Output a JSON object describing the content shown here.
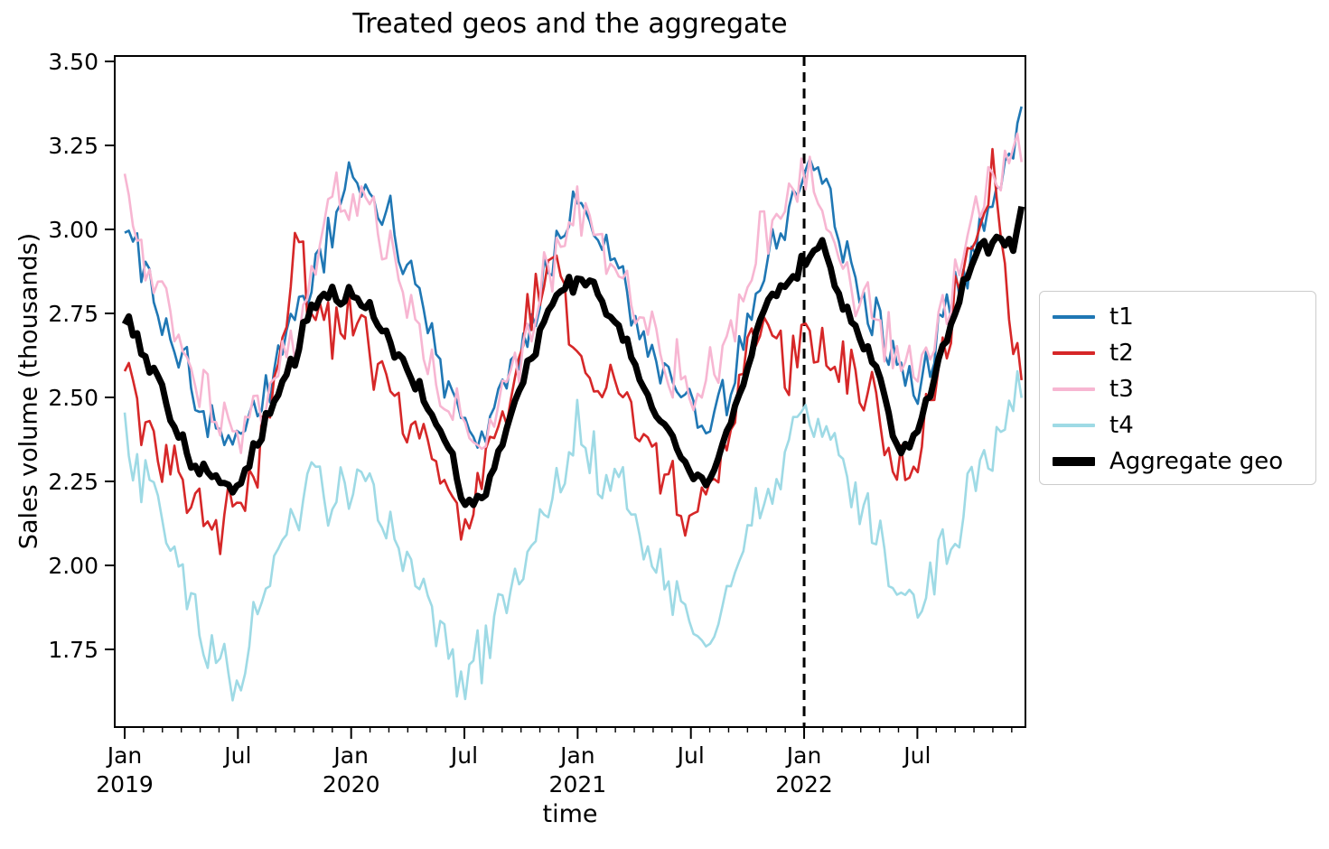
{
  "title": "Treated geos and the aggregate",
  "xlabel": "time",
  "ylabel": "Sales volume (thousands)",
  "axes": {
    "y_tick_labels": [
      "3.50",
      "3.25",
      "3.00",
      "2.75",
      "2.50",
      "2.25",
      "2.00",
      "1.75"
    ],
    "y_tick_values": [
      3.5,
      3.25,
      3.0,
      2.75,
      2.5,
      2.25,
      2.0,
      1.75
    ],
    "x_ticks": [
      {
        "month": 0,
        "label": "Jan",
        "year": "2019"
      },
      {
        "month": 6,
        "label": "Jul",
        "year": ""
      },
      {
        "month": 12,
        "label": "Jan",
        "year": "2020"
      },
      {
        "month": 18,
        "label": "Jul",
        "year": ""
      },
      {
        "month": 24,
        "label": "Jan",
        "year": "2021"
      },
      {
        "month": 30,
        "label": "Jul",
        "year": ""
      },
      {
        "month": 36,
        "label": "Jan",
        "year": "2022"
      },
      {
        "month": 42,
        "label": "Jul",
        "year": ""
      }
    ],
    "minor_tick_every_month": true
  },
  "treatment_line": {
    "month": 36,
    "at_label": "Jan 2022",
    "color": "#000000",
    "style": "dashed"
  },
  "legend": {
    "items": [
      {
        "label": "t1",
        "color": "#1f77b4",
        "linewidth": 2.6
      },
      {
        "label": "t2",
        "color": "#d62728",
        "linewidth": 2.6
      },
      {
        "label": "t3",
        "color": "#f7b6d2",
        "linewidth": 2.6
      },
      {
        "label": "t4",
        "color": "#9edae5",
        "linewidth": 2.6
      },
      {
        "label": "Aggregate geo",
        "color": "#000000",
        "linewidth": 7
      }
    ]
  },
  "chart_data": {
    "type": "line",
    "title": "Treated geos and the aggregate",
    "xlabel": "time",
    "ylabel": "Sales volume (thousands)",
    "x_unit": "months since Jan 2019 (weekly noisy samples in original)",
    "x_range_months": [
      0,
      47.6
    ],
    "ylim": [
      1.52,
      3.52
    ],
    "grid": false,
    "legend_position": "center right, outside axes",
    "series": [
      {
        "name": "t1",
        "color": "#1f77b4",
        "linewidth": 2.6,
        "noise_amp": 0.045,
        "seed": 101,
        "monthly_values": [
          3.0,
          2.9,
          2.76,
          2.62,
          2.5,
          2.4,
          2.36,
          2.48,
          2.6,
          2.72,
          2.86,
          3.0,
          3.18,
          3.1,
          3.04,
          2.86,
          2.7,
          2.58,
          2.45,
          2.38,
          2.5,
          2.62,
          2.8,
          2.96,
          3.12,
          3.0,
          2.9,
          2.74,
          2.64,
          2.56,
          2.46,
          2.38,
          2.52,
          2.7,
          2.92,
          3.02,
          3.24,
          3.14,
          2.98,
          2.82,
          2.72,
          2.6,
          2.54,
          2.66,
          2.82,
          2.96,
          3.08,
          3.22
        ],
        "end_value": 3.4
      },
      {
        "name": "t2",
        "color": "#d62728",
        "linewidth": 2.6,
        "noise_amp": 0.055,
        "seed": 102,
        "monthly_values": [
          2.55,
          2.38,
          2.3,
          2.26,
          2.18,
          2.1,
          2.16,
          2.3,
          2.55,
          2.95,
          2.8,
          2.7,
          2.72,
          2.62,
          2.52,
          2.44,
          2.38,
          2.28,
          2.12,
          2.28,
          2.45,
          2.62,
          2.88,
          2.94,
          2.62,
          2.52,
          2.54,
          2.46,
          2.34,
          2.22,
          2.14,
          2.22,
          2.42,
          2.62,
          2.72,
          2.55,
          2.7,
          2.64,
          2.58,
          2.52,
          2.44,
          2.28,
          2.34,
          2.58,
          2.8,
          3.02,
          3.22,
          2.62
        ],
        "end_value": 2.58
      },
      {
        "name": "t3",
        "color": "#f7b6d2",
        "linewidth": 2.6,
        "noise_amp": 0.05,
        "seed": 103,
        "monthly_values": [
          3.14,
          2.96,
          2.8,
          2.66,
          2.54,
          2.46,
          2.4,
          2.48,
          2.56,
          2.66,
          2.82,
          3.1,
          3.04,
          3.1,
          2.94,
          2.76,
          2.6,
          2.54,
          2.42,
          2.36,
          2.5,
          2.62,
          2.82,
          2.96,
          3.06,
          2.96,
          2.9,
          2.76,
          2.66,
          2.6,
          2.5,
          2.56,
          2.7,
          2.86,
          3.0,
          3.1,
          3.16,
          3.06,
          2.92,
          2.8,
          2.72,
          2.62,
          2.56,
          2.7,
          2.86,
          3.02,
          3.1,
          3.24
        ],
        "end_value": 3.3
      },
      {
        "name": "t4",
        "color": "#9edae5",
        "linewidth": 2.6,
        "noise_amp": 0.05,
        "seed": 104,
        "monthly_values": [
          2.35,
          2.26,
          2.14,
          1.95,
          1.8,
          1.72,
          1.67,
          1.84,
          2.02,
          2.16,
          2.3,
          2.18,
          2.26,
          2.28,
          2.1,
          1.98,
          1.88,
          1.78,
          1.65,
          1.76,
          1.9,
          2.02,
          2.12,
          2.22,
          2.4,
          2.3,
          2.24,
          2.12,
          2.02,
          1.92,
          1.82,
          1.74,
          1.94,
          2.1,
          2.22,
          2.36,
          2.52,
          2.36,
          2.28,
          2.18,
          2.08,
          1.98,
          1.84,
          1.96,
          2.1,
          2.26,
          2.36,
          2.46
        ],
        "end_value": 2.55
      },
      {
        "name": "Aggregate geo",
        "color": "#000000",
        "linewidth": 7,
        "noise_amp": 0.018,
        "seed": 105,
        "monthly_values": [
          2.74,
          2.62,
          2.5,
          2.37,
          2.28,
          2.25,
          2.23,
          2.36,
          2.5,
          2.63,
          2.8,
          2.8,
          2.8,
          2.76,
          2.68,
          2.58,
          2.48,
          2.38,
          2.18,
          2.22,
          2.36,
          2.52,
          2.7,
          2.82,
          2.85,
          2.8,
          2.74,
          2.6,
          2.48,
          2.38,
          2.27,
          2.24,
          2.4,
          2.6,
          2.78,
          2.84,
          2.9,
          2.96,
          2.8,
          2.66,
          2.56,
          2.34,
          2.4,
          2.56,
          2.76,
          2.92,
          2.98,
          2.94
        ],
        "end_value": 3.08
      }
    ]
  }
}
